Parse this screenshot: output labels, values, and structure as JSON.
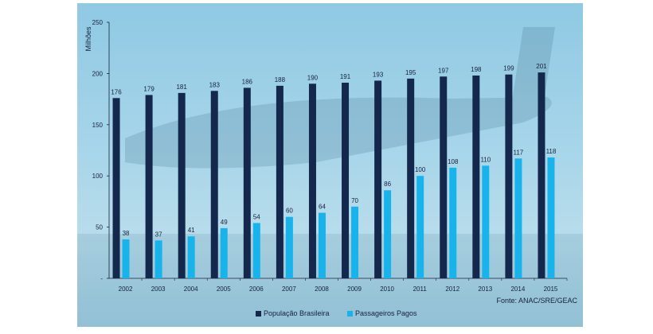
{
  "chart_data": {
    "type": "bar",
    "categories": [
      "2002",
      "2003",
      "2004",
      "2005",
      "2006",
      "2007",
      "2008",
      "2009",
      "2010",
      "2011",
      "2012",
      "2013",
      "2014",
      "2015"
    ],
    "series": [
      {
        "name": "População Brasileira",
        "color": "#14284d",
        "values": [
          176,
          179,
          181,
          183,
          186,
          188,
          190,
          191,
          193,
          195,
          197,
          198,
          199,
          201
        ]
      },
      {
        "name": "Passageiros Pagos",
        "color": "#19b3ec",
        "values": [
          38,
          37,
          41,
          49,
          54,
          60,
          64,
          70,
          86,
          100,
          108,
          110,
          117,
          118
        ]
      }
    ],
    "ylabel": "Milhões",
    "ylim": [
      0,
      250
    ],
    "yticks": [
      {
        "value": 0,
        "label": "-"
      },
      {
        "value": 50,
        "label": "50"
      },
      {
        "value": 100,
        "label": "100"
      },
      {
        "value": 150,
        "label": "150"
      },
      {
        "value": 200,
        "label": "200"
      },
      {
        "value": 250,
        "label": "250"
      }
    ],
    "grid": false,
    "legend_position": "bottom",
    "source": "Fonte: ANAC/SRE/GEAC"
  }
}
